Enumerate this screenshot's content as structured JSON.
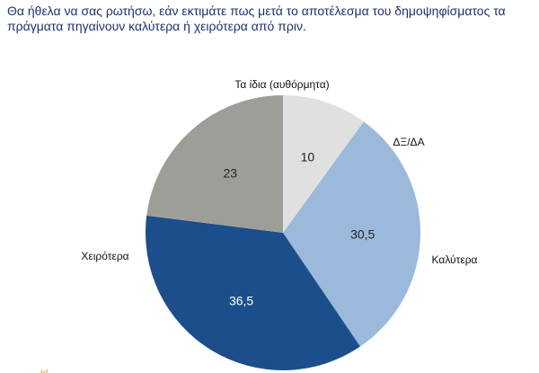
{
  "question": "Θα ήθελα να σας ρωτήσω, εάν εκτιμάτε πως μετά το αποτέλεσμα του δημοψηφίσματος τα πράγματα πηγαίνουν καλύτερα ή χειρότερα από πριν.",
  "chart_data": {
    "type": "pie",
    "categories": [
      "ΔΞ/ΔΑ",
      "Καλύτερα",
      "Χειρότερα",
      "Τα ίδια (αυθόρμητα)"
    ],
    "values": [
      10,
      30.5,
      36.5,
      23
    ],
    "value_labels": [
      "10",
      "30,5",
      "36,5",
      "23"
    ],
    "colors": [
      "#e0e0e0",
      "#9bbadb",
      "#1c4e8c",
      "#9e9e99"
    ],
    "label_colors": [
      "#222222",
      "#222222",
      "#ffffff",
      "#222222"
    ],
    "start_angle_deg": 0,
    "direction": "clockwise",
    "legend": "none"
  }
}
